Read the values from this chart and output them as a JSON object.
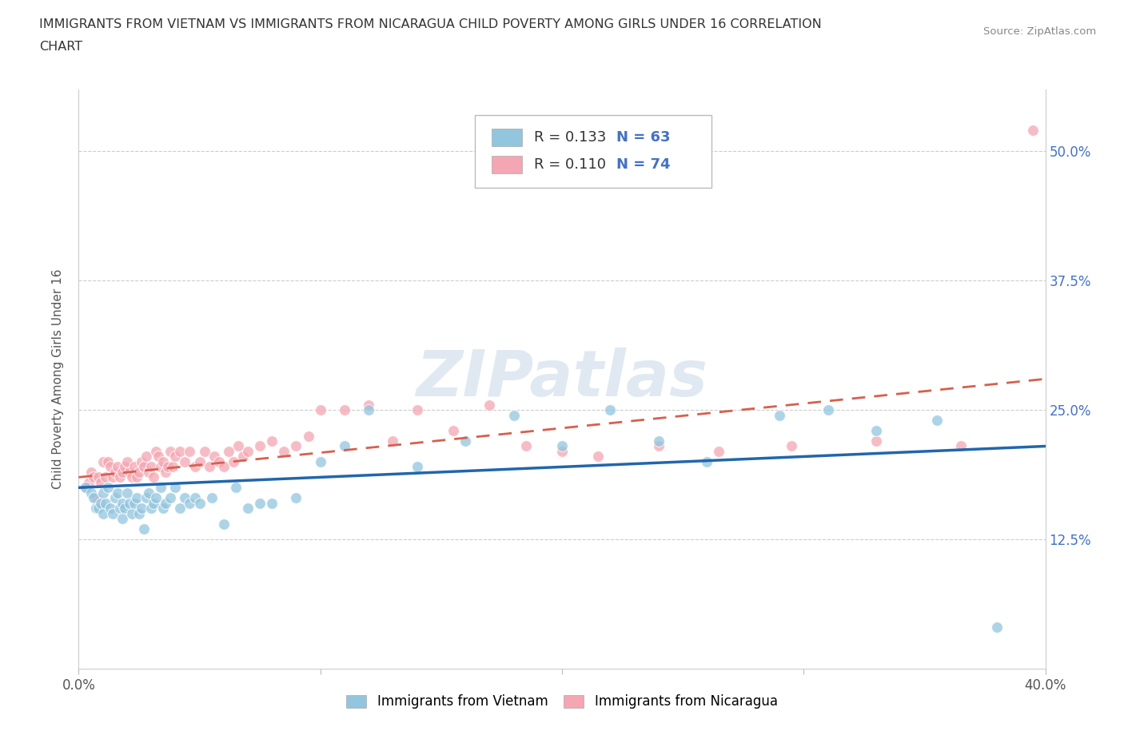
{
  "title_line1": "IMMIGRANTS FROM VIETNAM VS IMMIGRANTS FROM NICARAGUA CHILD POVERTY AMONG GIRLS UNDER 16 CORRELATION",
  "title_line2": "CHART",
  "source_text": "Source: ZipAtlas.com",
  "ylabel": "Child Poverty Among Girls Under 16",
  "xlim": [
    0.0,
    0.4
  ],
  "ylim": [
    0.0,
    0.56
  ],
  "ytick_labels": [
    "12.5%",
    "25.0%",
    "37.5%",
    "50.0%"
  ],
  "ytick_values": [
    0.125,
    0.25,
    0.375,
    0.5
  ],
  "watermark": "ZIPatlas",
  "blue_color": "#92c5de",
  "pink_color": "#f4a6b2",
  "trendline_blue_color": "#2166ac",
  "trendline_pink_color": "#d6604d",
  "vietnam_x": [
    0.003,
    0.005,
    0.006,
    0.007,
    0.008,
    0.009,
    0.01,
    0.01,
    0.011,
    0.012,
    0.013,
    0.014,
    0.015,
    0.016,
    0.017,
    0.018,
    0.018,
    0.019,
    0.02,
    0.021,
    0.022,
    0.023,
    0.024,
    0.025,
    0.026,
    0.027,
    0.028,
    0.029,
    0.03,
    0.031,
    0.032,
    0.034,
    0.035,
    0.036,
    0.038,
    0.04,
    0.042,
    0.044,
    0.046,
    0.048,
    0.05,
    0.055,
    0.06,
    0.065,
    0.07,
    0.075,
    0.08,
    0.09,
    0.1,
    0.11,
    0.12,
    0.14,
    0.16,
    0.18,
    0.2,
    0.22,
    0.24,
    0.26,
    0.29,
    0.31,
    0.33,
    0.355,
    0.38
  ],
  "vietnam_y": [
    0.175,
    0.17,
    0.165,
    0.155,
    0.155,
    0.16,
    0.17,
    0.15,
    0.16,
    0.175,
    0.155,
    0.15,
    0.165,
    0.17,
    0.155,
    0.16,
    0.145,
    0.155,
    0.17,
    0.16,
    0.15,
    0.16,
    0.165,
    0.15,
    0.155,
    0.135,
    0.165,
    0.17,
    0.155,
    0.16,
    0.165,
    0.175,
    0.155,
    0.16,
    0.165,
    0.175,
    0.155,
    0.165,
    0.16,
    0.165,
    0.16,
    0.165,
    0.14,
    0.175,
    0.155,
    0.16,
    0.16,
    0.165,
    0.2,
    0.215,
    0.25,
    0.195,
    0.22,
    0.245,
    0.215,
    0.25,
    0.22,
    0.2,
    0.245,
    0.25,
    0.23,
    0.24,
    0.04
  ],
  "nicaragua_x": [
    0.003,
    0.004,
    0.005,
    0.006,
    0.007,
    0.008,
    0.009,
    0.01,
    0.011,
    0.012,
    0.013,
    0.014,
    0.015,
    0.016,
    0.017,
    0.018,
    0.019,
    0.02,
    0.021,
    0.022,
    0.023,
    0.024,
    0.025,
    0.026,
    0.027,
    0.028,
    0.029,
    0.03,
    0.031,
    0.032,
    0.033,
    0.034,
    0.035,
    0.036,
    0.037,
    0.038,
    0.039,
    0.04,
    0.042,
    0.044,
    0.046,
    0.048,
    0.05,
    0.052,
    0.054,
    0.056,
    0.058,
    0.06,
    0.062,
    0.064,
    0.066,
    0.068,
    0.07,
    0.075,
    0.08,
    0.085,
    0.09,
    0.095,
    0.1,
    0.11,
    0.12,
    0.13,
    0.14,
    0.155,
    0.17,
    0.185,
    0.2,
    0.215,
    0.24,
    0.265,
    0.295,
    0.33,
    0.365,
    0.395
  ],
  "nicaragua_y": [
    0.175,
    0.18,
    0.19,
    0.185,
    0.165,
    0.185,
    0.18,
    0.2,
    0.185,
    0.2,
    0.195,
    0.185,
    0.19,
    0.195,
    0.185,
    0.19,
    0.195,
    0.2,
    0.19,
    0.185,
    0.195,
    0.185,
    0.19,
    0.2,
    0.195,
    0.205,
    0.19,
    0.195,
    0.185,
    0.21,
    0.205,
    0.195,
    0.2,
    0.19,
    0.195,
    0.21,
    0.195,
    0.205,
    0.21,
    0.2,
    0.21,
    0.195,
    0.2,
    0.21,
    0.195,
    0.205,
    0.2,
    0.195,
    0.21,
    0.2,
    0.215,
    0.205,
    0.21,
    0.215,
    0.22,
    0.21,
    0.215,
    0.225,
    0.25,
    0.25,
    0.255,
    0.22,
    0.25,
    0.23,
    0.255,
    0.215,
    0.21,
    0.205,
    0.215,
    0.21,
    0.215,
    0.22,
    0.215,
    0.52
  ],
  "trendline_blue_x0": 0.0,
  "trendline_blue_y0": 0.175,
  "trendline_blue_x1": 0.4,
  "trendline_blue_y1": 0.215,
  "trendline_pink_x0": 0.0,
  "trendline_pink_y0": 0.185,
  "trendline_pink_x1": 0.4,
  "trendline_pink_y1": 0.28
}
